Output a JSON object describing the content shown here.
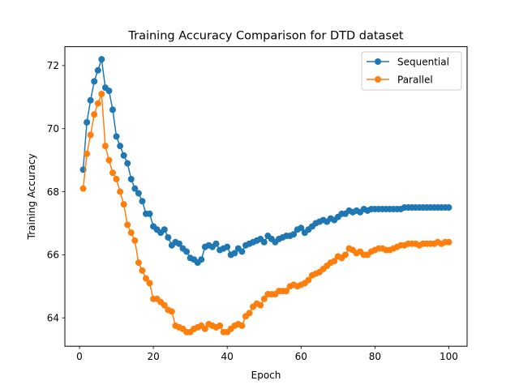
{
  "chart_data": {
    "type": "line",
    "title": "Training Accuracy Comparison for DTD dataset",
    "xlabel": "Epoch",
    "ylabel": "Training Accuracy",
    "xlim": [
      -3.95,
      104.95
    ],
    "ylim": [
      63.1,
      72.6
    ],
    "xticks": [
      0,
      20,
      40,
      60,
      80,
      100
    ],
    "yticks": [
      64,
      66,
      68,
      70,
      72
    ],
    "grid": false,
    "legend_position": "top-right",
    "x": [
      1,
      2,
      3,
      4,
      5,
      6,
      7,
      8,
      9,
      10,
      11,
      12,
      13,
      14,
      15,
      16,
      17,
      18,
      19,
      20,
      21,
      22,
      23,
      24,
      25,
      26,
      27,
      28,
      29,
      30,
      31,
      32,
      33,
      34,
      35,
      36,
      37,
      38,
      39,
      40,
      41,
      42,
      43,
      44,
      45,
      46,
      47,
      48,
      49,
      50,
      51,
      52,
      53,
      54,
      55,
      56,
      57,
      58,
      59,
      60,
      61,
      62,
      63,
      64,
      65,
      66,
      67,
      68,
      69,
      70,
      71,
      72,
      73,
      74,
      75,
      76,
      77,
      78,
      79,
      80,
      81,
      82,
      83,
      84,
      85,
      86,
      87,
      88,
      89,
      90,
      91,
      92,
      93,
      94,
      95,
      96,
      97,
      98,
      99,
      100
    ],
    "series": [
      {
        "name": "Sequential",
        "color": "#1f77b4",
        "values": [
          68.7,
          70.2,
          70.9,
          71.5,
          71.85,
          72.2,
          71.3,
          71.2,
          70.6,
          69.75,
          69.45,
          69.15,
          68.9,
          68.4,
          68.1,
          67.95,
          67.7,
          67.3,
          67.3,
          66.9,
          66.8,
          66.7,
          66.8,
          66.55,
          66.3,
          66.4,
          66.35,
          66.2,
          66.1,
          65.9,
          65.85,
          65.75,
          65.85,
          66.25,
          66.3,
          66.25,
          66.35,
          66.15,
          66.2,
          66.25,
          66.0,
          66.05,
          66.2,
          66.1,
          66.3,
          66.35,
          66.4,
          66.45,
          66.5,
          66.4,
          66.6,
          66.5,
          66.4,
          66.5,
          66.55,
          66.6,
          66.6,
          66.65,
          66.8,
          66.85,
          66.7,
          66.8,
          66.9,
          67.0,
          67.05,
          67.1,
          67.05,
          67.15,
          67.1,
          67.2,
          67.3,
          67.3,
          67.4,
          67.35,
          67.4,
          67.35,
          67.45,
          67.4,
          67.45,
          67.45,
          67.45,
          67.45,
          67.45,
          67.45,
          67.45,
          67.45,
          67.45,
          67.5,
          67.5,
          67.5,
          67.5,
          67.5,
          67.5,
          67.5,
          67.5,
          67.5,
          67.5,
          67.5,
          67.5,
          67.5
        ]
      },
      {
        "name": "Parallel",
        "color": "#ff7f0e",
        "values": [
          68.1,
          69.2,
          69.8,
          70.45,
          70.8,
          71.1,
          69.45,
          69.0,
          68.6,
          68.4,
          68.0,
          67.6,
          66.95,
          66.7,
          66.45,
          65.75,
          65.5,
          65.25,
          65.1,
          64.6,
          64.6,
          64.5,
          64.4,
          64.25,
          64.2,
          63.75,
          63.7,
          63.65,
          63.55,
          63.55,
          63.65,
          63.7,
          63.75,
          63.65,
          63.8,
          63.75,
          63.7,
          63.75,
          63.55,
          63.55,
          63.65,
          63.75,
          63.8,
          63.75,
          64.05,
          64.15,
          64.35,
          64.45,
          64.4,
          64.6,
          64.75,
          64.75,
          64.75,
          64.85,
          64.85,
          64.85,
          65.0,
          65.05,
          65.0,
          65.05,
          65.1,
          65.2,
          65.35,
          65.4,
          65.45,
          65.55,
          65.65,
          65.75,
          65.8,
          65.95,
          65.9,
          66.0,
          66.2,
          66.15,
          66.05,
          66.1,
          66.0,
          66.0,
          66.1,
          66.15,
          66.2,
          66.2,
          66.15,
          66.15,
          66.2,
          66.25,
          66.3,
          66.3,
          66.35,
          66.35,
          66.35,
          66.3,
          66.35,
          66.35,
          66.35,
          66.35,
          66.4,
          66.35,
          66.4,
          66.4
        ]
      }
    ]
  }
}
